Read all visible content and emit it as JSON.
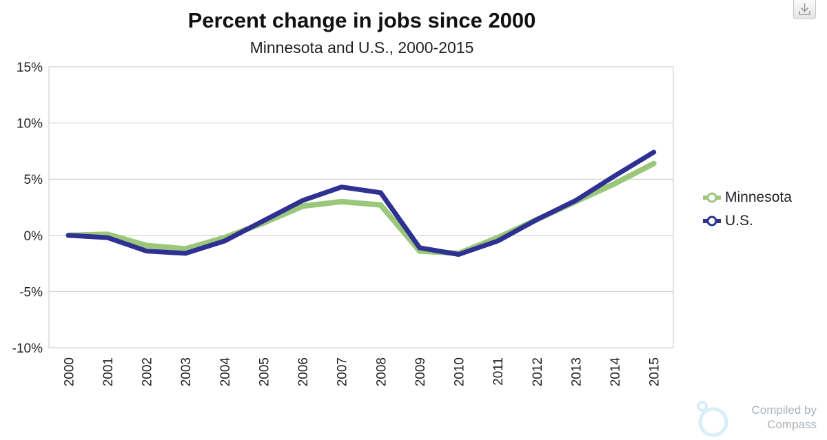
{
  "chart_data": {
    "type": "line",
    "title": "Percent change in jobs since 2000",
    "subtitle": "Minnesota and U.S., 2000-2015",
    "x": [
      "2000",
      "2001",
      "2002",
      "2003",
      "2004",
      "2005",
      "2006",
      "2007",
      "2008",
      "2009",
      "2010",
      "2011",
      "2012",
      "2013",
      "2014",
      "2015"
    ],
    "series": [
      {
        "name": "Minnesota",
        "color": "#9bc77a",
        "values": [
          0.0,
          0.1,
          -0.9,
          -1.2,
          -0.2,
          1.1,
          2.6,
          3.0,
          2.7,
          -1.4,
          -1.6,
          -0.2,
          1.4,
          3.0,
          4.6,
          6.4
        ]
      },
      {
        "name": "U.S.",
        "color": "#2e3192",
        "values": [
          0.0,
          -0.2,
          -1.4,
          -1.6,
          -0.5,
          1.3,
          3.1,
          4.3,
          3.8,
          -1.1,
          -1.7,
          -0.5,
          1.4,
          3.1,
          5.3,
          7.4
        ]
      }
    ],
    "ylim": [
      -10,
      15
    ],
    "yticks": [
      15,
      10,
      5,
      0,
      -5,
      -10
    ],
    "yticklabels": [
      "15%",
      "10%",
      "5%",
      "0%",
      "-5%",
      "-10%"
    ],
    "xlabel": "",
    "ylabel": "",
    "grid": true,
    "legend": "right"
  },
  "credit": {
    "text": "Compiled by\nCompass"
  },
  "toolbar": {
    "download_icon": "download-icon"
  }
}
